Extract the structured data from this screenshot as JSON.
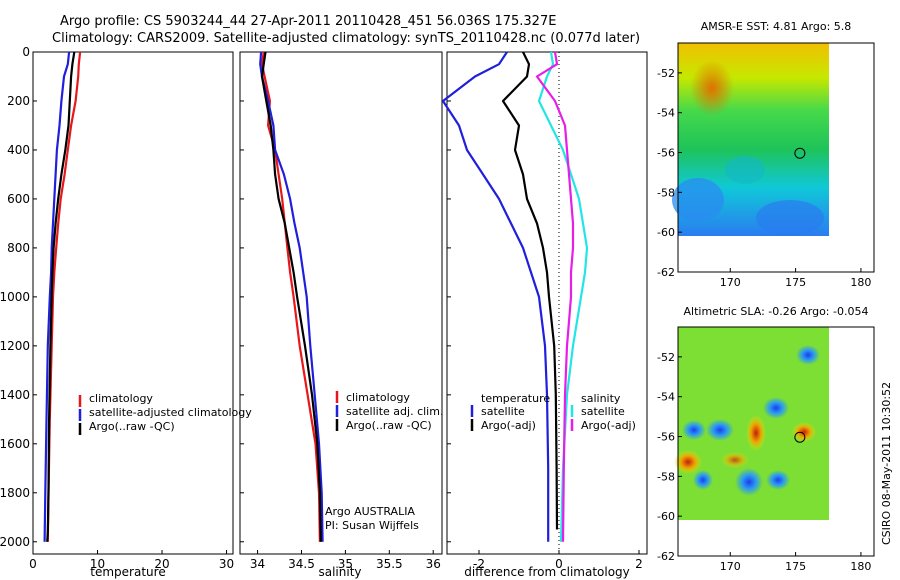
{
  "title": {
    "line1": "Argo profile: CS 5903244_44 27-Apr-2011 20110428_451 56.036S 175.327E",
    "line2": "Climatology: CARS2009. Satellite-adjusted climatology: synTS_20110428.nc (0.077d later)"
  },
  "colors": {
    "red": "#e8171b",
    "blue": "#1f1fdc",
    "black": "#000000",
    "cyan": "#22e6e6",
    "magenta": "#e61ee6"
  },
  "chart_data": [
    {
      "type": "line",
      "name": "temperature-panel",
      "xlabel": "temperature",
      "ylabel": "",
      "xlim": [
        0,
        31
      ],
      "ylim": [
        0,
        2050
      ],
      "xticks": [
        "0",
        "10",
        "20",
        "30"
      ],
      "yticks": [
        "0",
        "200",
        "400",
        "600",
        "800",
        "1000",
        "1200",
        "1400",
        "1600",
        "1800",
        "2000"
      ],
      "legend": [
        "climatology",
        "satellite-adjusted climatology",
        "Argo(..raw -QC)"
      ],
      "series": [
        {
          "name": "climatology",
          "color": "red",
          "x": [
            7.3,
            7.1,
            7.0,
            6.6,
            5.9,
            5.4,
            4.9,
            4.3,
            3.9,
            3.6,
            3.3,
            3.1,
            2.9,
            2.6,
            2.4,
            2.3
          ],
          "y": [
            0,
            50,
            100,
            200,
            300,
            400,
            500,
            600,
            700,
            800,
            900,
            1000,
            1200,
            1500,
            1800,
            2000
          ]
        },
        {
          "name": "satellite-adjusted climatology",
          "color": "blue",
          "x": [
            5.6,
            5.4,
            4.8,
            4.4,
            4.1,
            3.7,
            3.5,
            3.3,
            3.1,
            2.9,
            2.8,
            2.6,
            2.3,
            2.1,
            1.9,
            1.8
          ],
          "y": [
            0,
            50,
            100,
            200,
            300,
            400,
            500,
            600,
            700,
            800,
            900,
            1000,
            1200,
            1500,
            1800,
            2000
          ]
        },
        {
          "name": "Argo(..raw -QC)",
          "color": "black",
          "x": [
            6.4,
            6.1,
            5.9,
            5.7,
            5.5,
            5.0,
            4.4,
            3.9,
            3.5,
            3.2,
            3.0,
            2.9,
            2.7,
            2.5,
            2.4,
            2.3,
            2.2
          ],
          "y": [
            0,
            50,
            100,
            200,
            300,
            400,
            500,
            600,
            700,
            800,
            900,
            1000,
            1200,
            1500,
            1800,
            1960,
            2000
          ]
        }
      ]
    },
    {
      "type": "line",
      "name": "salinity-panel",
      "xlabel": "salinity",
      "ylabel": "",
      "xlim": [
        33.8,
        36.1
      ],
      "ylim": [
        0,
        2050
      ],
      "xticks": [
        "34",
        "34.5",
        "35",
        "35.5",
        "36"
      ],
      "legend": [
        "climatology",
        "satellite adj. clim.",
        "Argo(..raw -QC)"
      ],
      "annotations": [
        "Argo AUSTRALIA",
        "PI: Susan Wijffels"
      ],
      "series": [
        {
          "name": "climatology",
          "color": "red",
          "x": [
            34.07,
            34.05,
            34.08,
            34.14,
            34.12,
            34.2,
            34.24,
            34.28,
            34.31,
            34.34,
            34.37,
            34.41,
            34.48,
            34.57,
            34.66,
            34.7,
            34.71
          ],
          "y": [
            0,
            50,
            100,
            200,
            300,
            400,
            500,
            600,
            700,
            800,
            900,
            1000,
            1200,
            1400,
            1600,
            1800,
            2000
          ]
        },
        {
          "name": "satellite adj. clim.",
          "color": "blue",
          "x": [
            34.04,
            34.03,
            34.05,
            34.12,
            34.18,
            34.2,
            34.3,
            34.37,
            34.42,
            34.48,
            34.52,
            34.56,
            34.6,
            34.65,
            34.7,
            34.73,
            34.74
          ],
          "y": [
            0,
            50,
            100,
            200,
            300,
            400,
            500,
            600,
            700,
            800,
            900,
            1000,
            1200,
            1400,
            1600,
            1800,
            2000
          ]
        },
        {
          "name": "Argo(..raw -QC)",
          "color": "black",
          "x": [
            34.09,
            34.07,
            34.05,
            34.1,
            34.15,
            34.18,
            34.2,
            34.24,
            34.31,
            34.36,
            34.41,
            34.45,
            34.54,
            34.62,
            34.68,
            34.71,
            34.72
          ],
          "y": [
            0,
            50,
            100,
            200,
            300,
            400,
            500,
            600,
            700,
            800,
            900,
            1000,
            1200,
            1400,
            1600,
            1800,
            2000
          ]
        }
      ]
    },
    {
      "type": "line",
      "name": "difference-panel",
      "xlabel": "difference from climatology",
      "ylabel": "",
      "xlim": [
        -2.8,
        2.2
      ],
      "ylim": [
        0,
        2050
      ],
      "xticks": [
        "-2",
        "0",
        "2"
      ],
      "legend_temperature": [
        "temperature",
        "satellite",
        "Argo(-adj)"
      ],
      "legend_salinity": [
        "salinity",
        "satellite",
        "Argo(-adj)"
      ],
      "series": [
        {
          "name": "temperature satellite",
          "color": "blue",
          "x": [
            -1.3,
            -1.5,
            -2.1,
            -2.9,
            -2.5,
            -2.3,
            -1.9,
            -1.5,
            -1.2,
            -0.9,
            -0.7,
            -0.5,
            -0.35,
            -0.3,
            -0.27,
            -0.27
          ],
          "y": [
            0,
            50,
            100,
            200,
            300,
            400,
            500,
            600,
            700,
            800,
            900,
            1000,
            1200,
            1400,
            1700,
            2000
          ]
        },
        {
          "name": "temperature Argo(-adj)",
          "color": "black",
          "x": [
            -0.9,
            -0.75,
            -0.8,
            -1.4,
            -1.0,
            -1.1,
            -0.9,
            -0.8,
            -0.55,
            -0.4,
            -0.3,
            -0.25,
            -0.12,
            -0.08,
            -0.06,
            -0.05
          ],
          "y": [
            0,
            50,
            100,
            200,
            300,
            400,
            500,
            600,
            700,
            800,
            900,
            1000,
            1200,
            1400,
            1700,
            1950
          ]
        },
        {
          "name": "salinity satellite",
          "color": "cyan",
          "x": [
            -0.2,
            -0.15,
            -0.3,
            -0.5,
            -0.2,
            0.1,
            0.3,
            0.5,
            0.6,
            0.7,
            0.65,
            0.55,
            0.35,
            0.2,
            0.1,
            0.05
          ],
          "y": [
            0,
            50,
            100,
            200,
            300,
            400,
            500,
            600,
            700,
            800,
            900,
            1000,
            1200,
            1400,
            1700,
            2000
          ]
        },
        {
          "name": "salinity Argo(-adj)",
          "color": "magenta",
          "x": [
            -0.1,
            -0.05,
            -0.55,
            -0.1,
            0.15,
            0.2,
            0.25,
            0.3,
            0.35,
            0.35,
            0.3,
            0.3,
            0.2,
            0.15,
            0.12,
            0.1
          ],
          "y": [
            0,
            50,
            100,
            200,
            300,
            400,
            500,
            600,
            700,
            800,
            900,
            1000,
            1200,
            1400,
            1700,
            2000
          ]
        }
      ]
    },
    {
      "type": "heatmap",
      "name": "sst-map",
      "title": "AMSR-E SST: 4.81  Argo: 5.8",
      "xlim": [
        166,
        181
      ],
      "ylim": [
        -62,
        -50.5
      ],
      "xticks": [
        "170",
        "175",
        "180"
      ],
      "yticks": [
        "-52",
        "-54",
        "-56",
        "-58",
        "-60",
        "-62"
      ],
      "argo_marker": {
        "lon": 175.327,
        "lat": -56.036
      }
    },
    {
      "type": "heatmap",
      "name": "sla-map",
      "title": "Altimetric SLA: -0.26  Argo: -0.054",
      "xlim": [
        166,
        181
      ],
      "ylim": [
        -62,
        -50.5
      ],
      "xticks": [
        "170",
        "175",
        "180"
      ],
      "yticks": [
        "-52",
        "-54",
        "-56",
        "-58",
        "-60",
        "-62"
      ],
      "argo_marker": {
        "lon": 175.327,
        "lat": -56.036
      }
    }
  ],
  "credit": "CSIRO 08-May-2011 10:30:52"
}
